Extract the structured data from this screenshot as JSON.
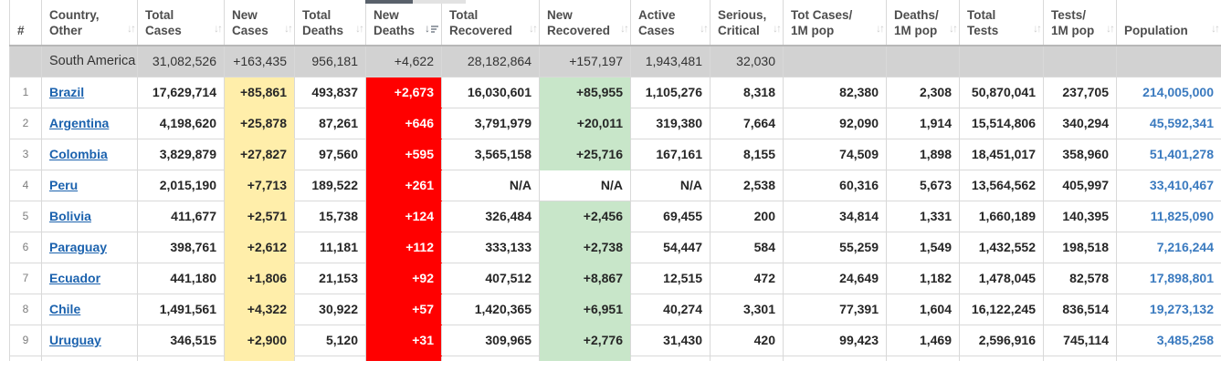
{
  "table": {
    "columns": [
      {
        "id": "rank",
        "line1": "#",
        "line2": "",
        "sort": "none"
      },
      {
        "id": "country",
        "line1": "Country,",
        "line2": "Other",
        "sort": "both"
      },
      {
        "id": "total_cases",
        "line1": "Total",
        "line2": "Cases",
        "sort": "both"
      },
      {
        "id": "new_cases",
        "line1": "New",
        "line2": "Cases",
        "sort": "both"
      },
      {
        "id": "total_deaths",
        "line1": "Total",
        "line2": "Deaths",
        "sort": "both"
      },
      {
        "id": "new_deaths",
        "line1": "New",
        "line2": "Deaths",
        "sort": "desc"
      },
      {
        "id": "total_recovered",
        "line1": "Total",
        "line2": "Recovered",
        "sort": "both"
      },
      {
        "id": "new_recovered",
        "line1": "New",
        "line2": "Recovered",
        "sort": "both"
      },
      {
        "id": "active_cases",
        "line1": "Active",
        "line2": "Cases",
        "sort": "both"
      },
      {
        "id": "serious_critical",
        "line1": "Serious,",
        "line2": "Critical",
        "sort": "both"
      },
      {
        "id": "cases_per_1m",
        "line1": "Tot Cases/",
        "line2": "1M pop",
        "sort": "both"
      },
      {
        "id": "deaths_per_1m",
        "line1": "Deaths/",
        "line2": "1M pop",
        "sort": "both"
      },
      {
        "id": "total_tests",
        "line1": "Total",
        "line2": "Tests",
        "sort": "both"
      },
      {
        "id": "tests_per_1m",
        "line1": "Tests/",
        "line2": "1M pop",
        "sort": "both"
      },
      {
        "id": "population",
        "line1": "Population",
        "line2": "",
        "sort": "both"
      }
    ],
    "continent_row": {
      "rank": "",
      "country": "South America",
      "total_cases": "31,082,526",
      "new_cases": "+163,435",
      "total_deaths": "956,181",
      "new_deaths": "+4,622",
      "total_recovered": "28,182,864",
      "new_recovered": "+157,197",
      "active_cases": "1,943,481",
      "serious_critical": "32,030",
      "cases_per_1m": "",
      "deaths_per_1m": "",
      "total_tests": "",
      "tests_per_1m": "",
      "population": ""
    },
    "rows": [
      {
        "rank": "1",
        "country": "Brazil",
        "total_cases": "17,629,714",
        "new_cases": "+85,861",
        "total_deaths": "493,837",
        "new_deaths": "+2,673",
        "total_recovered": "16,030,601",
        "new_recovered": "+85,955",
        "active_cases": "1,105,276",
        "serious_critical": "8,318",
        "cases_per_1m": "82,380",
        "deaths_per_1m": "2,308",
        "total_tests": "50,870,041",
        "tests_per_1m": "237,705",
        "population": "214,005,000"
      },
      {
        "rank": "2",
        "country": "Argentina",
        "total_cases": "4,198,620",
        "new_cases": "+25,878",
        "total_deaths": "87,261",
        "new_deaths": "+646",
        "total_recovered": "3,791,979",
        "new_recovered": "+20,011",
        "active_cases": "319,380",
        "serious_critical": "7,664",
        "cases_per_1m": "92,090",
        "deaths_per_1m": "1,914",
        "total_tests": "15,514,806",
        "tests_per_1m": "340,294",
        "population": "45,592,341"
      },
      {
        "rank": "3",
        "country": "Colombia",
        "total_cases": "3,829,879",
        "new_cases": "+27,827",
        "total_deaths": "97,560",
        "new_deaths": "+595",
        "total_recovered": "3,565,158",
        "new_recovered": "+25,716",
        "active_cases": "167,161",
        "serious_critical": "8,155",
        "cases_per_1m": "74,509",
        "deaths_per_1m": "1,898",
        "total_tests": "18,451,017",
        "tests_per_1m": "358,960",
        "population": "51,401,278"
      },
      {
        "rank": "4",
        "country": "Peru",
        "total_cases": "2,015,190",
        "new_cases": "+7,713",
        "total_deaths": "189,522",
        "new_deaths": "+261",
        "total_recovered": "N/A",
        "new_recovered": "N/A",
        "active_cases": "N/A",
        "serious_critical": "2,538",
        "cases_per_1m": "60,316",
        "deaths_per_1m": "5,673",
        "total_tests": "13,564,562",
        "tests_per_1m": "405,997",
        "population": "33,410,467"
      },
      {
        "rank": "5",
        "country": "Bolivia",
        "total_cases": "411,677",
        "new_cases": "+2,571",
        "total_deaths": "15,738",
        "new_deaths": "+124",
        "total_recovered": "326,484",
        "new_recovered": "+2,456",
        "active_cases": "69,455",
        "serious_critical": "200",
        "cases_per_1m": "34,814",
        "deaths_per_1m": "1,331",
        "total_tests": "1,660,189",
        "tests_per_1m": "140,395",
        "population": "11,825,090"
      },
      {
        "rank": "6",
        "country": "Paraguay",
        "total_cases": "398,761",
        "new_cases": "+2,612",
        "total_deaths": "11,181",
        "new_deaths": "+112",
        "total_recovered": "333,133",
        "new_recovered": "+2,738",
        "active_cases": "54,447",
        "serious_critical": "584",
        "cases_per_1m": "55,259",
        "deaths_per_1m": "1,549",
        "total_tests": "1,432,552",
        "tests_per_1m": "198,518",
        "population": "7,216,244"
      },
      {
        "rank": "7",
        "country": "Ecuador",
        "total_cases": "441,180",
        "new_cases": "+1,806",
        "total_deaths": "21,153",
        "new_deaths": "+92",
        "total_recovered": "407,512",
        "new_recovered": "+8,867",
        "active_cases": "12,515",
        "serious_critical": "472",
        "cases_per_1m": "24,649",
        "deaths_per_1m": "1,182",
        "total_tests": "1,478,045",
        "tests_per_1m": "82,578",
        "population": "17,898,801"
      },
      {
        "rank": "8",
        "country": "Chile",
        "total_cases": "1,491,561",
        "new_cases": "+4,322",
        "total_deaths": "30,922",
        "new_deaths": "+57",
        "total_recovered": "1,420,365",
        "new_recovered": "+6,951",
        "active_cases": "40,274",
        "serious_critical": "3,301",
        "cases_per_1m": "77,391",
        "deaths_per_1m": "1,604",
        "total_tests": "16,122,245",
        "tests_per_1m": "836,514",
        "population": "19,273,132"
      },
      {
        "rank": "9",
        "country": "Uruguay",
        "total_cases": "346,515",
        "new_cases": "+2,900",
        "total_deaths": "5,120",
        "new_deaths": "+31",
        "total_recovered": "309,965",
        "new_recovered": "+2,776",
        "active_cases": "31,430",
        "serious_critical": "420",
        "cases_per_1m": "99,423",
        "deaths_per_1m": "1,469",
        "total_tests": "2,596,916",
        "tests_per_1m": "745,114",
        "population": "3,485,258"
      }
    ],
    "sort_icon_glyph": "↓↑",
    "active_sort_arrow": "↓",
    "colors": {
      "new_cases_bg": "#ffeeaa",
      "new_deaths_bg": "#ff0000",
      "new_recovered_bg": "#c8e6c9",
      "continent_row_bg": "#d2d2d2",
      "country_link": "#1b62ae",
      "population_link": "#3a7abf",
      "sorted_column_strip": "#59616b"
    }
  }
}
